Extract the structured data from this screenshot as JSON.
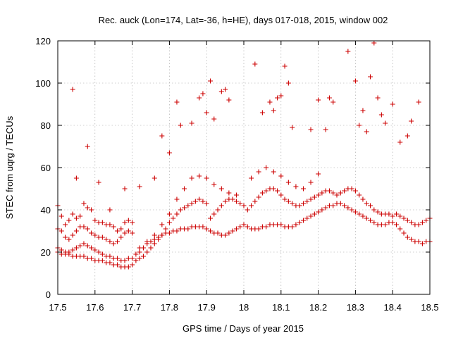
{
  "chart_data": {
    "type": "scatter",
    "title": "Rec. auck (Lon=174, Lat=-36, h=HE), days 017-018, 2015, window 002",
    "xlabel": "GPS time / Days of year 2015",
    "ylabel": "STEC from uqrg / TECUs",
    "xlim": [
      17.5,
      18.5
    ],
    "ylim": [
      0,
      120
    ],
    "xticks": [
      "17.5",
      "17.6",
      "17.7",
      "17.8",
      "17.9",
      "18",
      "18.1",
      "18.2",
      "18.3",
      "18.4",
      "18.5"
    ],
    "yticks": [
      "0",
      "20",
      "40",
      "60",
      "80",
      "100",
      "120"
    ],
    "grid": true,
    "marker": "+",
    "marker_color": "#cc0000",
    "series": [
      {
        "points": [
          [
            17.5,
            42
          ],
          [
            17.51,
            37
          ],
          [
            17.52,
            33
          ],
          [
            17.53,
            35
          ],
          [
            17.54,
            38
          ],
          [
            17.55,
            36
          ],
          [
            17.56,
            37
          ],
          [
            17.57,
            43
          ],
          [
            17.58,
            41
          ],
          [
            17.59,
            40
          ],
          [
            17.6,
            35
          ],
          [
            17.61,
            34
          ],
          [
            17.62,
            34
          ],
          [
            17.63,
            33
          ],
          [
            17.64,
            33
          ],
          [
            17.65,
            32
          ],
          [
            17.66,
            30
          ],
          [
            17.67,
            31
          ],
          [
            17.68,
            34
          ],
          [
            17.69,
            35
          ],
          [
            17.7,
            34
          ],
          [
            17.5,
            31
          ],
          [
            17.51,
            30
          ],
          [
            17.52,
            27
          ],
          [
            17.53,
            26
          ],
          [
            17.54,
            28
          ],
          [
            17.55,
            30
          ],
          [
            17.56,
            32
          ],
          [
            17.57,
            32
          ],
          [
            17.58,
            31
          ],
          [
            17.59,
            29
          ],
          [
            17.6,
            28
          ],
          [
            17.61,
            27
          ],
          [
            17.62,
            27
          ],
          [
            17.63,
            26
          ],
          [
            17.64,
            25
          ],
          [
            17.65,
            24
          ],
          [
            17.66,
            25
          ],
          [
            17.67,
            27
          ],
          [
            17.68,
            29
          ],
          [
            17.69,
            30
          ],
          [
            17.7,
            29
          ],
          [
            17.5,
            22
          ],
          [
            17.51,
            21
          ],
          [
            17.52,
            20
          ],
          [
            17.53,
            20
          ],
          [
            17.54,
            21
          ],
          [
            17.55,
            22
          ],
          [
            17.56,
            23
          ],
          [
            17.57,
            24
          ],
          [
            17.58,
            23
          ],
          [
            17.59,
            22
          ],
          [
            17.6,
            21
          ],
          [
            17.61,
            20
          ],
          [
            17.62,
            19
          ],
          [
            17.63,
            18
          ],
          [
            17.64,
            18
          ],
          [
            17.65,
            17
          ],
          [
            17.66,
            17
          ],
          [
            17.67,
            16
          ],
          [
            17.68,
            16
          ],
          [
            17.69,
            17
          ],
          [
            17.7,
            17
          ],
          [
            17.5,
            20
          ],
          [
            17.51,
            19
          ],
          [
            17.52,
            19
          ],
          [
            17.53,
            19
          ],
          [
            17.54,
            18
          ],
          [
            17.55,
            18
          ],
          [
            17.56,
            18
          ],
          [
            17.57,
            18
          ],
          [
            17.58,
            17
          ],
          [
            17.59,
            17
          ],
          [
            17.6,
            16
          ],
          [
            17.61,
            16
          ],
          [
            17.62,
            16
          ],
          [
            17.63,
            15
          ],
          [
            17.64,
            15
          ],
          [
            17.65,
            14
          ],
          [
            17.66,
            14
          ],
          [
            17.67,
            13
          ],
          [
            17.68,
            13
          ],
          [
            17.69,
            13
          ],
          [
            17.7,
            14
          ],
          [
            17.71,
            19
          ],
          [
            17.72,
            20
          ],
          [
            17.73,
            22
          ],
          [
            17.74,
            24
          ],
          [
            17.75,
            25
          ],
          [
            17.76,
            26
          ],
          [
            17.77,
            27
          ],
          [
            17.78,
            28
          ],
          [
            17.79,
            29
          ],
          [
            17.8,
            29
          ],
          [
            17.81,
            30
          ],
          [
            17.82,
            30
          ],
          [
            17.83,
            31
          ],
          [
            17.84,
            31
          ],
          [
            17.85,
            31
          ],
          [
            17.86,
            32
          ],
          [
            17.87,
            32
          ],
          [
            17.88,
            32
          ],
          [
            17.89,
            32
          ],
          [
            17.9,
            31
          ],
          [
            17.71,
            16
          ],
          [
            17.72,
            17
          ],
          [
            17.73,
            18
          ],
          [
            17.74,
            20
          ],
          [
            17.75,
            22
          ],
          [
            17.76,
            24
          ],
          [
            17.77,
            26
          ],
          [
            17.78,
            28
          ],
          [
            17.79,
            31
          ],
          [
            17.8,
            34
          ],
          [
            17.81,
            36
          ],
          [
            17.82,
            38
          ],
          [
            17.83,
            40
          ],
          [
            17.84,
            41
          ],
          [
            17.85,
            42
          ],
          [
            17.86,
            43
          ],
          [
            17.87,
            44
          ],
          [
            17.88,
            45
          ],
          [
            17.89,
            44
          ],
          [
            17.9,
            43
          ],
          [
            17.72,
            22
          ],
          [
            17.74,
            25
          ],
          [
            17.76,
            28
          ],
          [
            17.78,
            33
          ],
          [
            17.8,
            38
          ],
          [
            17.82,
            45
          ],
          [
            17.84,
            50
          ],
          [
            17.86,
            55
          ],
          [
            17.88,
            56
          ],
          [
            17.9,
            55
          ],
          [
            17.92,
            52
          ],
          [
            17.94,
            50
          ],
          [
            17.96,
            48
          ],
          [
            17.98,
            47
          ],
          [
            17.91,
            30
          ],
          [
            17.92,
            29
          ],
          [
            17.93,
            29
          ],
          [
            17.94,
            28
          ],
          [
            17.95,
            28
          ],
          [
            17.96,
            29
          ],
          [
            17.97,
            30
          ],
          [
            17.98,
            31
          ],
          [
            17.99,
            32
          ],
          [
            18.0,
            33
          ],
          [
            17.91,
            36
          ],
          [
            17.92,
            38
          ],
          [
            17.93,
            40
          ],
          [
            17.94,
            42
          ],
          [
            17.95,
            44
          ],
          [
            17.96,
            45
          ],
          [
            17.97,
            45
          ],
          [
            17.98,
            44
          ],
          [
            17.99,
            43
          ],
          [
            18.0,
            42
          ],
          [
            18.01,
            32
          ],
          [
            18.02,
            31
          ],
          [
            18.03,
            31
          ],
          [
            18.04,
            31
          ],
          [
            18.05,
            32
          ],
          [
            18.06,
            32
          ],
          [
            18.07,
            33
          ],
          [
            18.08,
            33
          ],
          [
            18.09,
            33
          ],
          [
            18.1,
            33
          ],
          [
            18.11,
            32
          ],
          [
            18.12,
            32
          ],
          [
            18.13,
            32
          ],
          [
            18.14,
            33
          ],
          [
            18.15,
            34
          ],
          [
            18.16,
            35
          ],
          [
            18.17,
            36
          ],
          [
            18.18,
            37
          ],
          [
            18.19,
            38
          ],
          [
            18.2,
            39
          ],
          [
            18.01,
            40
          ],
          [
            18.02,
            42
          ],
          [
            18.03,
            44
          ],
          [
            18.04,
            46
          ],
          [
            18.05,
            48
          ],
          [
            18.06,
            49
          ],
          [
            18.07,
            50
          ],
          [
            18.08,
            50
          ],
          [
            18.09,
            49
          ],
          [
            18.1,
            47
          ],
          [
            18.11,
            45
          ],
          [
            18.12,
            44
          ],
          [
            18.13,
            43
          ],
          [
            18.14,
            42
          ],
          [
            18.15,
            42
          ],
          [
            18.16,
            43
          ],
          [
            18.17,
            44
          ],
          [
            18.18,
            45
          ],
          [
            18.19,
            46
          ],
          [
            18.2,
            47
          ],
          [
            18.02,
            55
          ],
          [
            18.04,
            58
          ],
          [
            18.06,
            60
          ],
          [
            18.08,
            58
          ],
          [
            18.1,
            56
          ],
          [
            18.12,
            53
          ],
          [
            18.14,
            51
          ],
          [
            18.16,
            50
          ],
          [
            18.18,
            53
          ],
          [
            18.2,
            57
          ],
          [
            18.21,
            40
          ],
          [
            18.22,
            41
          ],
          [
            18.23,
            42
          ],
          [
            18.24,
            42
          ],
          [
            18.25,
            43
          ],
          [
            18.26,
            43
          ],
          [
            18.27,
            42
          ],
          [
            18.28,
            41
          ],
          [
            18.29,
            40
          ],
          [
            18.3,
            39
          ],
          [
            18.31,
            38
          ],
          [
            18.32,
            37
          ],
          [
            18.33,
            36
          ],
          [
            18.34,
            35
          ],
          [
            18.35,
            34
          ],
          [
            18.36,
            33
          ],
          [
            18.37,
            33
          ],
          [
            18.38,
            33
          ],
          [
            18.39,
            34
          ],
          [
            18.4,
            34
          ],
          [
            18.21,
            48
          ],
          [
            18.22,
            49
          ],
          [
            18.23,
            49
          ],
          [
            18.24,
            48
          ],
          [
            18.25,
            47
          ],
          [
            18.26,
            48
          ],
          [
            18.27,
            49
          ],
          [
            18.28,
            50
          ],
          [
            18.29,
            50
          ],
          [
            18.3,
            49
          ],
          [
            18.31,
            47
          ],
          [
            18.32,
            45
          ],
          [
            18.33,
            43
          ],
          [
            18.34,
            42
          ],
          [
            18.35,
            40
          ],
          [
            18.36,
            39
          ],
          [
            18.37,
            38
          ],
          [
            18.38,
            38
          ],
          [
            18.39,
            38
          ],
          [
            18.4,
            37
          ],
          [
            18.41,
            33
          ],
          [
            18.42,
            31
          ],
          [
            18.43,
            29
          ],
          [
            18.44,
            27
          ],
          [
            18.45,
            26
          ],
          [
            18.46,
            25
          ],
          [
            18.47,
            25
          ],
          [
            18.48,
            24
          ],
          [
            18.49,
            25
          ],
          [
            18.5,
            25
          ],
          [
            18.41,
            38
          ],
          [
            18.42,
            37
          ],
          [
            18.43,
            36
          ],
          [
            18.44,
            35
          ],
          [
            18.45,
            34
          ],
          [
            18.46,
            33
          ],
          [
            18.47,
            33
          ],
          [
            18.48,
            34
          ],
          [
            18.49,
            35
          ],
          [
            18.5,
            36
          ],
          [
            17.54,
            97
          ],
          [
            17.58,
            70
          ],
          [
            17.55,
            55
          ],
          [
            17.61,
            53
          ],
          [
            17.64,
            40
          ],
          [
            17.68,
            50
          ],
          [
            17.72,
            51
          ],
          [
            17.76,
            55
          ],
          [
            17.78,
            75
          ],
          [
            17.8,
            67
          ],
          [
            17.82,
            91
          ],
          [
            17.83,
            80
          ],
          [
            17.86,
            81
          ],
          [
            17.88,
            93
          ],
          [
            17.89,
            95
          ],
          [
            17.9,
            86
          ],
          [
            17.91,
            101
          ],
          [
            17.92,
            83
          ],
          [
            17.94,
            96
          ],
          [
            17.95,
            97
          ],
          [
            17.96,
            92
          ],
          [
            18.03,
            109
          ],
          [
            18.05,
            86
          ],
          [
            18.07,
            91
          ],
          [
            18.08,
            87
          ],
          [
            18.09,
            93
          ],
          [
            18.1,
            94
          ],
          [
            18.11,
            108
          ],
          [
            18.12,
            100
          ],
          [
            18.13,
            79
          ],
          [
            18.18,
            78
          ],
          [
            18.2,
            92
          ],
          [
            18.22,
            78
          ],
          [
            18.23,
            93
          ],
          [
            18.24,
            91
          ],
          [
            18.28,
            115
          ],
          [
            18.3,
            101
          ],
          [
            18.31,
            80
          ],
          [
            18.32,
            87
          ],
          [
            18.33,
            77
          ],
          [
            18.34,
            103
          ],
          [
            18.35,
            119
          ],
          [
            18.36,
            93
          ],
          [
            18.37,
            85
          ],
          [
            18.38,
            81
          ],
          [
            18.4,
            90
          ],
          [
            18.42,
            72
          ],
          [
            18.44,
            75
          ],
          [
            18.45,
            82
          ],
          [
            18.47,
            91
          ]
        ]
      }
    ]
  }
}
